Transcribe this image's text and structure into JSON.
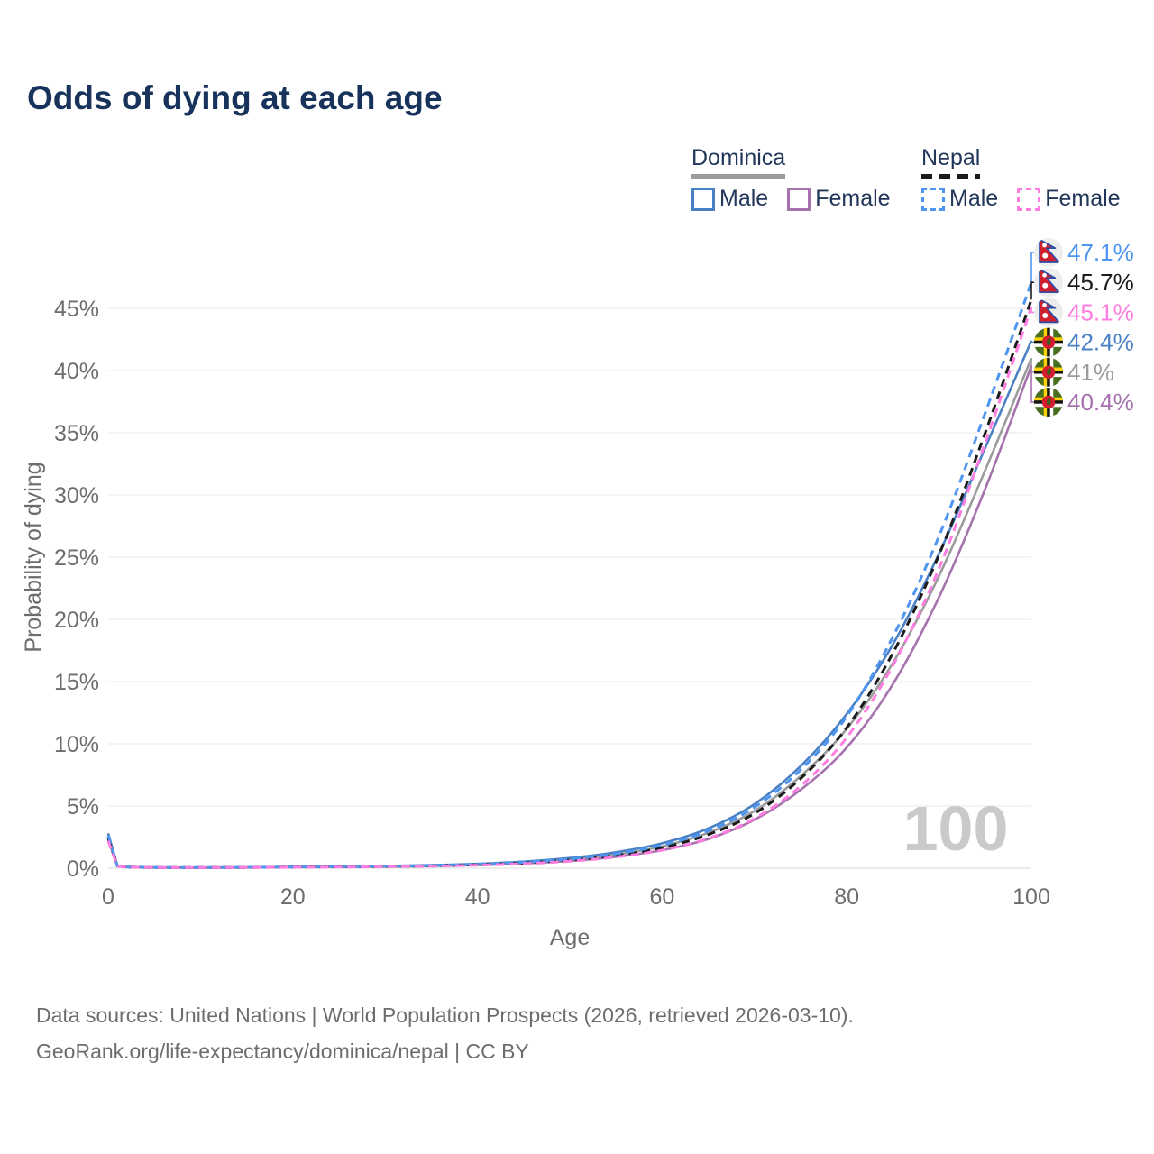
{
  "title": "Odds of dying at each age",
  "watermark": "100",
  "legend": {
    "groups": [
      {
        "label": "Dominica",
        "line_style": "solid",
        "underline_color": "#9b9b9b",
        "items": [
          {
            "label": "Male",
            "color": "#4a80c4"
          },
          {
            "label": "Female",
            "color": "#a672ae"
          }
        ]
      },
      {
        "label": "Nepal",
        "line_style": "dashed",
        "underline_color": "#1b1b1b",
        "items": [
          {
            "label": "Male",
            "color": "#4e95f0"
          },
          {
            "label": "Female",
            "color": "#ff7ce0"
          }
        ]
      }
    ]
  },
  "footer": {
    "line1": "Data sources: United Nations | World Population Prospects (2026, retrieved 2026-03-10).",
    "line2": "GeoRank.org/life-expectancy/dominica/nepal | CC BY"
  },
  "chart_data": {
    "type": "line",
    "title": "Odds of dying at each age",
    "xlabel": "Age",
    "ylabel": "Probability of dying",
    "x_ticks": [
      "0",
      "20",
      "40",
      "60",
      "80",
      "100"
    ],
    "y_ticks": [
      "0%",
      "5%",
      "10%",
      "15%",
      "20%",
      "25%",
      "30%",
      "35%",
      "40%",
      "45%"
    ],
    "x_range": [
      0,
      100
    ],
    "y_axis_range_percent": [
      0,
      45
    ],
    "grid": "horizontal-only",
    "legend_position": "top-right",
    "ages": [
      0,
      1,
      2,
      5,
      10,
      15,
      20,
      25,
      30,
      35,
      40,
      45,
      50,
      55,
      60,
      65,
      70,
      75,
      80,
      85,
      90,
      95,
      100
    ],
    "series": [
      {
        "id": "dominica-total",
        "name": "Dominica Total",
        "country": "Dominica",
        "sex": "Total",
        "color": "#9b9b9b",
        "dashed": false,
        "end_label": "41%",
        "flag_icon": "dominica-flag-icon",
        "values": [
          2.55,
          0.19,
          0.1,
          0.06,
          0.05,
          0.06,
          0.1,
          0.12,
          0.16,
          0.22,
          0.3,
          0.45,
          0.7,
          1.1,
          1.75,
          2.85,
          4.6,
          7.4,
          11.2,
          16.5,
          23.5,
          32.0,
          41.0
        ]
      },
      {
        "id": "dominica-male",
        "name": "Dominica Male",
        "country": "Dominica",
        "sex": "Male",
        "color": "#4a80c4",
        "dashed": false,
        "end_label": "42.4%",
        "flag_icon": "dominica-flag-icon",
        "values": [
          2.8,
          0.2,
          0.11,
          0.06,
          0.05,
          0.07,
          0.11,
          0.14,
          0.18,
          0.25,
          0.35,
          0.53,
          0.82,
          1.28,
          2.0,
          3.2,
          5.15,
          8.2,
          12.4,
          18.0,
          25.3,
          33.8,
          42.4
        ]
      },
      {
        "id": "dominica-female",
        "name": "Dominica Female",
        "country": "Dominica",
        "sex": "Female",
        "color": "#a672ae",
        "dashed": false,
        "end_label": "40.4%",
        "flag_icon": "dominica-flag-icon",
        "values": [
          2.3,
          0.17,
          0.09,
          0.05,
          0.04,
          0.05,
          0.08,
          0.1,
          0.13,
          0.18,
          0.25,
          0.38,
          0.58,
          0.92,
          1.45,
          2.35,
          3.9,
          6.3,
          9.7,
          14.8,
          21.8,
          30.5,
          40.4
        ]
      },
      {
        "id": "nepal-total",
        "name": "Nepal Total",
        "country": "Nepal",
        "sex": "Total",
        "color": "#1b1b1b",
        "dashed": true,
        "end_label": "45.7%",
        "flag_icon": "nepal-flag-icon",
        "values": [
          2.4,
          0.18,
          0.09,
          0.05,
          0.05,
          0.06,
          0.09,
          0.11,
          0.14,
          0.19,
          0.28,
          0.42,
          0.65,
          1.03,
          1.65,
          2.7,
          4.4,
          7.2,
          11.3,
          17.3,
          25.2,
          35.0,
          45.7
        ]
      },
      {
        "id": "nepal-male",
        "name": "Nepal Male",
        "country": "Nepal",
        "sex": "Male",
        "color": "#4e95f0",
        "dashed": true,
        "end_label": "47.1%",
        "flag_icon": "nepal-flag-icon",
        "values": [
          2.6,
          0.19,
          0.1,
          0.06,
          0.05,
          0.07,
          0.1,
          0.13,
          0.16,
          0.22,
          0.32,
          0.48,
          0.74,
          1.16,
          1.85,
          3.0,
          4.9,
          7.9,
          12.2,
          18.6,
          26.7,
          36.6,
          47.1
        ]
      },
      {
        "id": "nepal-female",
        "name": "Nepal Female",
        "country": "Nepal",
        "sex": "Female",
        "color": "#ff7ce0",
        "dashed": true,
        "end_label": "45.1%",
        "flag_icon": "nepal-flag-icon",
        "values": [
          2.2,
          0.16,
          0.09,
          0.05,
          0.04,
          0.05,
          0.07,
          0.09,
          0.12,
          0.16,
          0.24,
          0.36,
          0.56,
          0.9,
          1.45,
          2.4,
          4.0,
          6.6,
          10.5,
          16.3,
          24.1,
          34.2,
          45.1
        ]
      }
    ]
  }
}
